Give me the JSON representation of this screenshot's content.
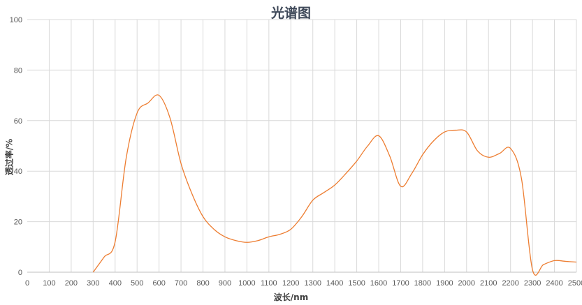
{
  "chart_data": {
    "type": "line",
    "title": "光谱图",
    "xlabel": "波长/nm",
    "ylabel": "透过率/%",
    "xlim": [
      0,
      2500
    ],
    "ylim": [
      0,
      100
    ],
    "x_ticks": [
      0,
      100,
      200,
      300,
      400,
      500,
      600,
      700,
      800,
      900,
      1000,
      1100,
      1200,
      1300,
      1400,
      1500,
      1600,
      1700,
      1800,
      1900,
      2000,
      2100,
      2200,
      2300,
      2400,
      2500
    ],
    "y_ticks": [
      0,
      20,
      40,
      60,
      80,
      100
    ],
    "grid": true,
    "legend": "none",
    "series": [
      {
        "color": "#ed7d31",
        "x": [
          300,
          350,
          400,
          450,
          500,
          550,
          600,
          650,
          700,
          750,
          800,
          850,
          900,
          950,
          1000,
          1050,
          1100,
          1150,
          1200,
          1250,
          1300,
          1350,
          1400,
          1450,
          1500,
          1550,
          1600,
          1650,
          1700,
          1750,
          1800,
          1850,
          1900,
          1950,
          2000,
          2050,
          2100,
          2150,
          2200,
          2250,
          2300,
          2350,
          2400,
          2450,
          2500
        ],
        "y": [
          0,
          6,
          12,
          45,
          63,
          67,
          70,
          61,
          43,
          31,
          22,
          17,
          14,
          12.5,
          11.8,
          12.5,
          14,
          15,
          17,
          22,
          28.5,
          31.5,
          34.5,
          39,
          44,
          50,
          54,
          46,
          34,
          39,
          46.5,
          52,
          55.5,
          56.2,
          55.5,
          48,
          45.5,
          47,
          49,
          37,
          1,
          3,
          4.6,
          4.3,
          4
        ]
      }
    ]
  }
}
